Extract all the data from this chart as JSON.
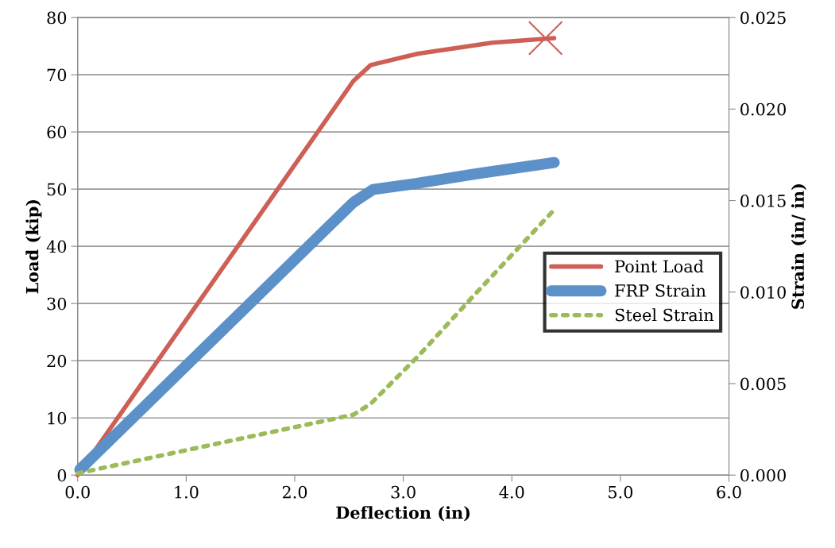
{
  "chart_data": {
    "type": "line",
    "xlabel": "Deflection (in)",
    "ylabel": "Load (kip)",
    "y2label": "Strain (in/ in)",
    "xlim": [
      0,
      6
    ],
    "xticks": [
      {
        "value": 0,
        "label": "0.0"
      },
      {
        "value": 1,
        "label": "1.0"
      },
      {
        "value": 2,
        "label": "2.0"
      },
      {
        "value": 3,
        "label": "3.0"
      },
      {
        "value": 4,
        "label": "4.0"
      },
      {
        "value": 5,
        "label": "5.0"
      },
      {
        "value": 6,
        "label": "6.0"
      }
    ],
    "ylim": [
      0,
      80
    ],
    "yticks": [
      0,
      10,
      20,
      30,
      40,
      50,
      60,
      70,
      80
    ],
    "y2lim": [
      0,
      0.025
    ],
    "y2ticks": [
      {
        "value": 0,
        "label": "0.000"
      },
      {
        "value": 0.005,
        "label": "0.005"
      },
      {
        "value": 0.01,
        "label": "0.010"
      },
      {
        "value": 0.015,
        "label": "0.015"
      },
      {
        "value": 0.02,
        "label": "0.020"
      },
      {
        "value": 0.025,
        "label": "0.025"
      }
    ],
    "grid": "y",
    "legend": "right",
    "series": [
      {
        "name": "Point Load",
        "color": "#cd5f57",
        "line_style": "solid",
        "x": [
          0.0,
          2.54,
          2.7,
          3.14,
          3.82,
          4.39
        ],
        "values": [
          0,
          68.9,
          71.7,
          73.7,
          75.6,
          76.4
        ]
      },
      {
        "type": "scatter",
        "marker": "cross",
        "color": "#cd5f57",
        "x": [
          4.31
        ],
        "values": [
          76.4
        ]
      },
      {
        "name": "FRP Strain",
        "color": "#5b90c8",
        "axis": "y2",
        "line_style": "solid",
        "x": [
          0.02,
          2.54,
          2.72,
          3.08,
          3.67,
          4.39
        ],
        "values": [
          0.0003,
          0.0149,
          0.0156,
          0.0159,
          0.01646,
          0.01708
        ]
      },
      {
        "name": "Steel Strain",
        "color": "#9bbb59",
        "axis": "y2",
        "line_style": "dotted",
        "x": [
          0.0,
          2.54,
          2.7,
          3.14,
          3.67,
          4.37
        ],
        "values": [
          0.0001,
          0.0033,
          0.0039,
          0.00652,
          0.00994,
          0.01437
        ]
      }
    ]
  }
}
